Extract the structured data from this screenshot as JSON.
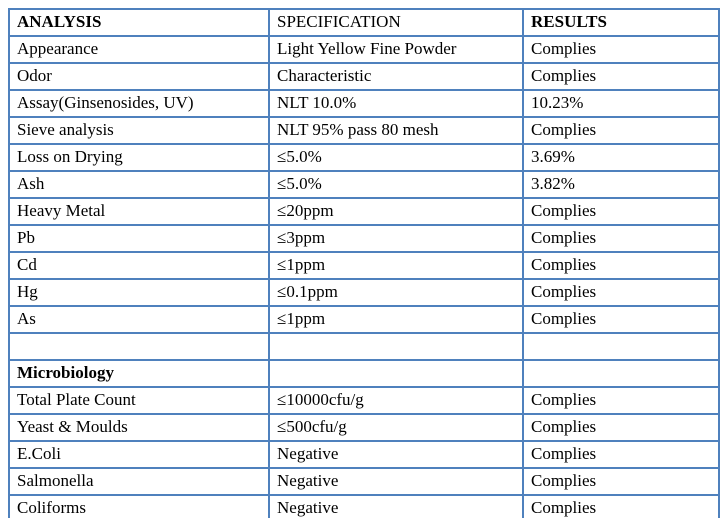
{
  "colors": {
    "border": "#4f81bd",
    "text": "#000000",
    "background": "#ffffff"
  },
  "table": {
    "columns": [
      {
        "label": "ANALYSIS",
        "bold": true
      },
      {
        "label": "SPECIFICATION",
        "bold": false
      },
      {
        "label": "RESULTS",
        "bold": true
      }
    ],
    "rows": [
      {
        "analysis": "Appearance",
        "specification": "Light Yellow Fine Powder",
        "results": "Complies",
        "bold": false
      },
      {
        "analysis": "Odor",
        "specification": "Characteristic",
        "results": "Complies",
        "bold": false
      },
      {
        "analysis": "Assay(Ginsenosides, UV)",
        "specification": "NLT 10.0%",
        "results": "10.23%",
        "bold": false
      },
      {
        "analysis": "Sieve analysis",
        "specification": "NLT 95% pass 80 mesh",
        "results": "Complies",
        "bold": false
      },
      {
        "analysis": "Loss on Drying",
        "specification": "≤5.0%",
        "results": "3.69%",
        "bold": false
      },
      {
        "analysis": "Ash",
        "specification": "≤5.0%",
        "results": "3.82%",
        "bold": false
      },
      {
        "analysis": "Heavy Metal",
        "specification": "≤20ppm",
        "results": "Complies",
        "bold": false
      },
      {
        "analysis": "Pb",
        "specification": "≤3ppm",
        "results": "Complies",
        "bold": false
      },
      {
        "analysis": "Cd",
        "specification": "≤1ppm",
        "results": "Complies",
        "bold": false
      },
      {
        "analysis": "Hg",
        "specification": "≤0.1ppm",
        "results": "Complies",
        "bold": false
      },
      {
        "analysis": "As",
        "specification": "≤1ppm",
        "results": "Complies",
        "bold": false
      },
      {
        "analysis": "",
        "specification": "",
        "results": "",
        "bold": false
      },
      {
        "analysis": "Microbiology",
        "specification": "",
        "results": "",
        "bold": true
      },
      {
        "analysis": "Total Plate Count",
        "specification": "≤10000cfu/g",
        "results": "Complies",
        "bold": false
      },
      {
        "analysis": "Yeast & Moulds",
        "specification": "≤500cfu/g",
        "results": "Complies",
        "bold": false
      },
      {
        "analysis": "E.Coli",
        "specification": "Negative",
        "results": "Complies",
        "bold": false
      },
      {
        "analysis": "Salmonella",
        "specification": "Negative",
        "results": "Complies",
        "bold": false
      },
      {
        "analysis": "Coliforms",
        "specification": "Negative",
        "results": "Complies",
        "bold": false
      }
    ]
  }
}
